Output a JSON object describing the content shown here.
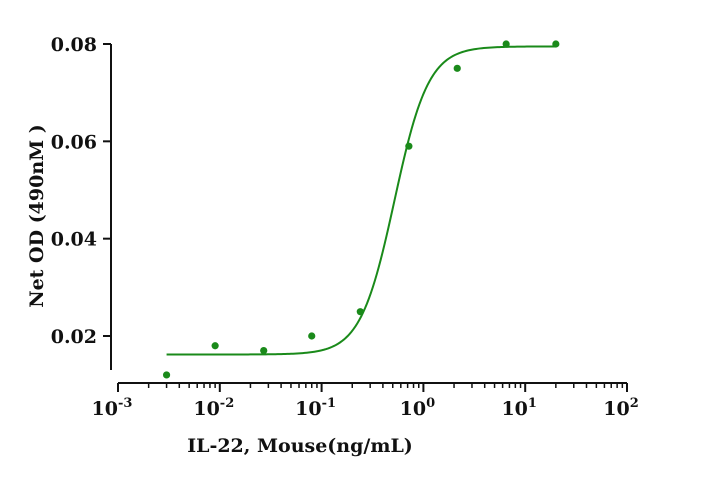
{
  "chart_data": {
    "type": "scatter",
    "title": "",
    "xlabel": "IL-22, Mouse(ng/mL)",
    "ylabel": "Net OD (490nM )",
    "x_scale": "log10",
    "xlim": [
      0.001,
      100
    ],
    "ylim": [
      0.01,
      0.08
    ],
    "x_ticks": [
      {
        "value": 0.001,
        "base": "10",
        "exp": "-3"
      },
      {
        "value": 0.01,
        "base": "10",
        "exp": "-2"
      },
      {
        "value": 0.1,
        "base": "10",
        "exp": "-1"
      },
      {
        "value": 1,
        "base": "10",
        "exp": "0"
      },
      {
        "value": 10,
        "base": "10",
        "exp": "1"
      },
      {
        "value": 100,
        "base": "10",
        "exp": "2"
      }
    ],
    "y_ticks": [
      {
        "value": 0.02,
        "label": "0.02"
      },
      {
        "value": 0.04,
        "label": "0.04"
      },
      {
        "value": 0.06,
        "label": "0.06"
      },
      {
        "value": 0.08,
        "label": "0.08"
      }
    ],
    "grid": false,
    "legend": "none",
    "color": "#1a8a1a",
    "series": [
      {
        "x": [
          0.003,
          0.009,
          0.027,
          0.08,
          0.24,
          0.72,
          2.15,
          6.5,
          20
        ],
        "y": [
          0.012,
          0.018,
          0.017,
          0.02,
          0.025,
          0.059,
          0.075,
          0.08,
          0.08
        ]
      }
    ],
    "fit": {
      "type": "4PL",
      "bottom": 0.0162,
      "top": 0.0795,
      "ec50": 0.52,
      "hill": 2.6,
      "x_range": [
        0.003,
        20
      ]
    }
  }
}
